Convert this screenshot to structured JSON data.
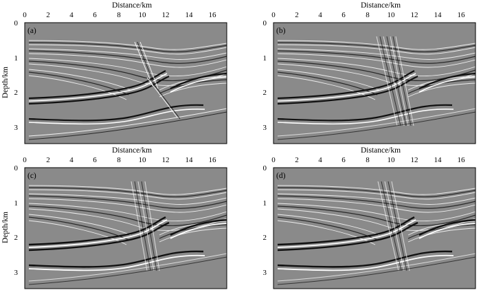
{
  "figure": {
    "x_label": "Distance/km",
    "y_label": "Depth/km",
    "panels": [
      {
        "id": "a",
        "label": "(a)"
      },
      {
        "id": "b",
        "label": "(b)"
      },
      {
        "id": "c",
        "label": "(c)"
      },
      {
        "id": "d",
        "label": "(d)"
      }
    ],
    "x_ticks": [
      "0",
      "2",
      "4",
      "6",
      "8",
      "10",
      "12",
      "14",
      "16"
    ],
    "y_ticks": [
      "0",
      "1",
      "2",
      "3"
    ],
    "x_range": [
      0,
      17
    ],
    "y_range": [
      0,
      3.5
    ],
    "colors": {
      "background": "#8a8a8a",
      "light": "#ffffff",
      "dark": "#101010",
      "frame": "#000000"
    }
  }
}
